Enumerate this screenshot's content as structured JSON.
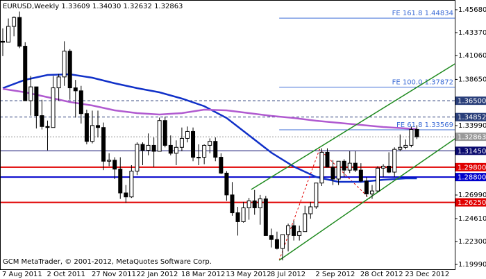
{
  "chart_data": {
    "type": "candlestick",
    "title": "EURUSD,Weekly",
    "ohlc_header": [
      "1.33609",
      "1.34030",
      "1.32632",
      "1.32863"
    ],
    "watermark": "GCM MetaTrader, © 2001-2012, MetaQuotes Software Corp.",
    "categories": [
      "7 Aug 2011",
      null,
      null,
      null,
      null,
      null,
      null,
      null,
      "2 Oct 2011",
      null,
      null,
      null,
      null,
      null,
      null,
      null,
      "27 Nov 2011",
      null,
      null,
      null,
      null,
      null,
      null,
      null,
      "22 Jan 2012",
      null,
      null,
      null,
      null,
      null,
      null,
      null,
      "18 Mar 2012",
      null,
      null,
      null,
      null,
      null,
      null,
      null,
      "13 May 2012",
      null,
      null,
      null,
      null,
      null,
      null,
      null,
      "8 Jul 2012",
      null,
      null,
      null,
      null,
      null,
      null,
      null,
      "2 Sep 2012",
      null,
      null,
      null,
      null,
      null,
      null,
      null,
      "28 Oct 2012",
      null,
      null,
      null,
      null,
      null,
      null,
      null,
      "23 Dec 2012",
      null,
      null
    ],
    "open": [
      1.425,
      1.424,
      1.44,
      1.449,
      1.42,
      1.365,
      1.379,
      1.35,
      1.339,
      1.338,
      1.378,
      1.389,
      1.415,
      1.378,
      1.375,
      1.352,
      1.324,
      1.34,
      1.338,
      1.304,
      1.305,
      1.296,
      1.272,
      1.268,
      1.294,
      1.321,
      1.315,
      1.32,
      1.314,
      1.345,
      1.32,
      1.312,
      1.318,
      1.327,
      1.334,
      1.308,
      1.308,
      1.32,
      1.324,
      1.308,
      1.292,
      1.27,
      1.252,
      1.243,
      1.257,
      1.264,
      1.257,
      1.266,
      1.229,
      1.225,
      1.216,
      1.23,
      1.239,
      1.229,
      1.233,
      1.251,
      1.258,
      1.282,
      1.313,
      1.298,
      1.286,
      1.304,
      1.295,
      1.302,
      1.295,
      1.284,
      1.271,
      1.274,
      1.297,
      1.299,
      1.293,
      1.316,
      1.318,
      1.32,
      1.33609
    ],
    "high": [
      1.438,
      1.448,
      1.45,
      1.455,
      1.424,
      1.39,
      1.379,
      1.366,
      1.345,
      1.39,
      1.392,
      1.425,
      1.417,
      1.386,
      1.38,
      1.356,
      1.355,
      1.355,
      1.343,
      1.312,
      1.308,
      1.308,
      1.28,
      1.3,
      1.323,
      1.323,
      1.332,
      1.328,
      1.348,
      1.349,
      1.33,
      1.325,
      1.338,
      1.339,
      1.338,
      1.321,
      1.321,
      1.327,
      1.328,
      1.312,
      1.294,
      1.283,
      1.258,
      1.263,
      1.267,
      1.275,
      1.27,
      1.269,
      1.236,
      1.233,
      1.23,
      1.241,
      1.244,
      1.239,
      1.259,
      1.263,
      1.282,
      1.317,
      1.317,
      1.305,
      1.304,
      1.306,
      1.314,
      1.314,
      1.302,
      1.288,
      1.28,
      1.299,
      1.301,
      1.313,
      1.318,
      1.331,
      1.326,
      1.339,
      1.3403
    ],
    "low": [
      1.41,
      1.424,
      1.43,
      1.418,
      1.365,
      1.35,
      1.337,
      1.336,
      1.315,
      1.338,
      1.365,
      1.38,
      1.366,
      1.348,
      1.342,
      1.321,
      1.322,
      1.328,
      1.295,
      1.299,
      1.286,
      1.266,
      1.262,
      1.267,
      1.29,
      1.3,
      1.31,
      1.298,
      1.314,
      1.318,
      1.31,
      1.3,
      1.314,
      1.323,
      1.304,
      1.3,
      1.301,
      1.312,
      1.304,
      1.291,
      1.264,
      1.249,
      1.229,
      1.242,
      1.245,
      1.25,
      1.24,
      1.229,
      1.217,
      1.215,
      1.204,
      1.213,
      1.224,
      1.224,
      1.233,
      1.246,
      1.256,
      1.279,
      1.298,
      1.28,
      1.28,
      1.288,
      1.292,
      1.293,
      1.283,
      1.268,
      1.266,
      1.273,
      1.288,
      1.292,
      1.288,
      1.314,
      1.316,
      1.318,
      1.32632
    ],
    "close": [
      1.424,
      1.44,
      1.449,
      1.42,
      1.365,
      1.379,
      1.35,
      1.339,
      1.338,
      1.378,
      1.389,
      1.415,
      1.378,
      1.375,
      1.352,
      1.324,
      1.34,
      1.338,
      1.304,
      1.305,
      1.296,
      1.272,
      1.268,
      1.294,
      1.321,
      1.315,
      1.32,
      1.314,
      1.345,
      1.32,
      1.312,
      1.318,
      1.327,
      1.334,
      1.308,
      1.308,
      1.32,
      1.324,
      1.308,
      1.292,
      1.27,
      1.252,
      1.243,
      1.257,
      1.264,
      1.257,
      1.266,
      1.229,
      1.225,
      1.216,
      1.23,
      1.239,
      1.229,
      1.233,
      1.251,
      1.258,
      1.282,
      1.313,
      1.298,
      1.286,
      1.304,
      1.295,
      1.302,
      1.295,
      1.284,
      1.271,
      1.274,
      1.297,
      1.299,
      1.293,
      1.316,
      1.318,
      1.32,
      1.336,
      1.32863
    ],
    "bull_color": "#ffffff",
    "bear_color": "#000000",
    "ylim": [
      1.195,
      1.4666
    ],
    "yticks": [
      {
        "value": 1.4568,
        "label": "1.45680"
      },
      {
        "value": 1.4337,
        "label": "1.43370"
      },
      {
        "value": 1.4106,
        "label": "1.41060"
      },
      {
        "value": 1.3865,
        "label": "1.38650"
      },
      {
        "value": 1.3399,
        "label": "1.33990"
      },
      {
        "value": 1.2699,
        "label": "1.26990"
      },
      {
        "value": 1.2461,
        "label": "1.24610"
      },
      {
        "value": 1.223,
        "label": "1.22300"
      },
      {
        "value": 1.1999,
        "label": "1.19990"
      }
    ],
    "levels": [
      {
        "value": 1.365,
        "label": "1.36500",
        "color": "#2a3f7a",
        "style": "dashed"
      },
      {
        "value": 1.34852,
        "label": "1.34852",
        "color": "#2a3f7a",
        "style": "dashed"
      },
      {
        "value": 1.32863,
        "label": "1.32863",
        "color": "#9a9a9a",
        "style": "dotted"
      },
      {
        "value": 1.3145,
        "label": "1.31450",
        "color": "#0a0a6e",
        "style": "solid"
      },
      {
        "value": 1.298,
        "label": "1.29800",
        "color": "#e00000",
        "style": "solid"
      },
      {
        "value": 1.288,
        "label": "1.28800",
        "color": "#0000cc",
        "style": "solid"
      },
      {
        "value": 1.2625,
        "label": "1.26250",
        "color": "#e00000",
        "style": "solid"
      }
    ],
    "fibo_color": "#3b6bd6",
    "fibo": [
      {
        "value": 1.44834,
        "label": "FE 161.8  1.44834"
      },
      {
        "value": 1.37872,
        "label": "FE 100.0  1.37872"
      },
      {
        "value": 1.33569,
        "label": "FE 61.8  1.33569"
      }
    ],
    "fibo_path": {
      "color": "#e00000",
      "x": [
        49.4,
        56.6,
        65.6
      ],
      "values": [
        1.2041,
        1.316,
        1.2661
      ]
    },
    "channel_color": "#1f8a1f",
    "channel": [
      {
        "x": [
          44.4,
          80.8
        ],
        "values": [
          1.2755,
          1.4022
        ]
      },
      {
        "x": [
          49.4,
          80.8
        ],
        "values": [
          1.2041,
          1.3266
        ]
      }
    ],
    "moving_averages": [
      {
        "color": "#1030c8",
        "x": [
          0,
          4,
          8,
          12,
          16,
          20,
          24,
          28,
          32,
          36,
          40,
          44,
          48,
          52,
          56,
          60,
          64,
          68,
          72,
          74
        ],
        "values": [
          1.3777,
          1.3861,
          1.391,
          1.3917,
          1.3882,
          1.3826,
          1.3777,
          1.3735,
          1.3672,
          1.3595,
          1.3476,
          1.3301,
          1.3126,
          1.2986,
          1.2881,
          1.2832,
          1.2832,
          1.2853,
          1.2867,
          1.2867
        ]
      },
      {
        "color": "#b05ad0",
        "x": [
          0,
          4,
          8,
          12,
          16,
          20,
          24,
          28,
          32,
          36,
          40,
          44,
          48,
          52,
          56,
          60,
          64,
          68,
          72,
          74
        ],
        "values": [
          1.377,
          1.3735,
          1.3686,
          1.3637,
          1.3602,
          1.3553,
          1.3525,
          1.3511,
          1.3525,
          1.356,
          1.3553,
          1.3525,
          1.3497,
          1.3476,
          1.3448,
          1.3427,
          1.3406,
          1.3385,
          1.3371,
          1.3364
        ]
      }
    ]
  }
}
